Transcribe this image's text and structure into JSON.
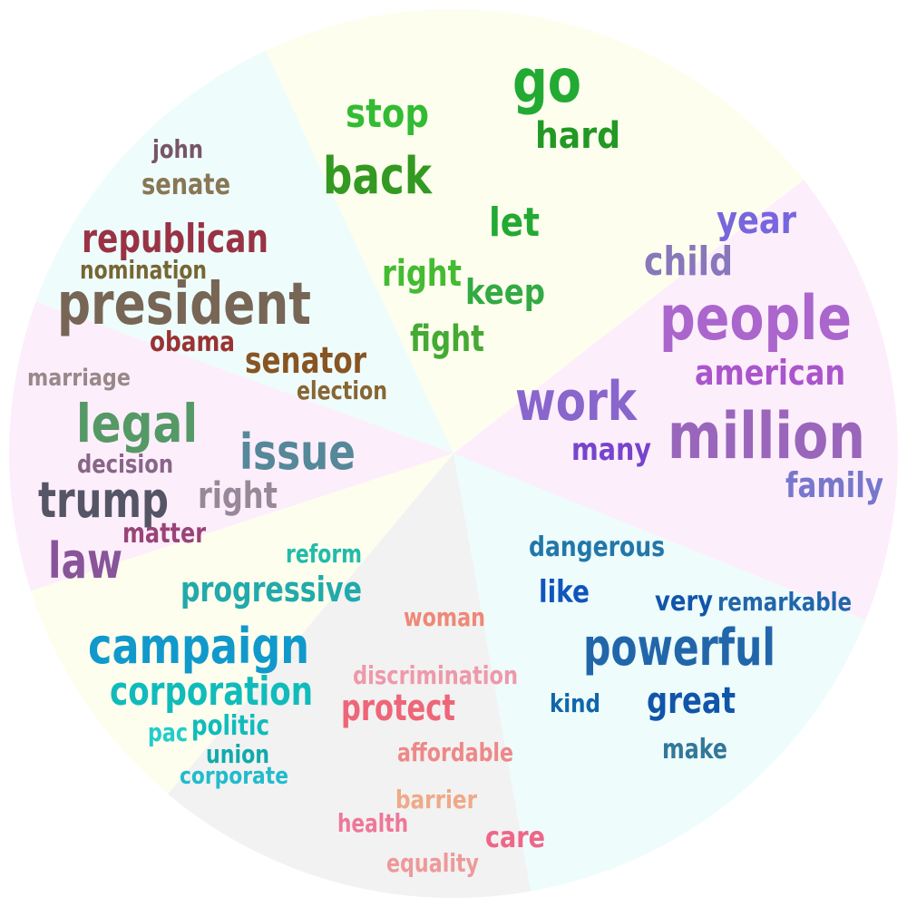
{
  "sectors": [
    {
      "id": "action",
      "bg": "#fefeee",
      "words": [
        {
          "text": "go",
          "color": "#22aa33"
        },
        {
          "text": "stop",
          "color": "#33bb33"
        },
        {
          "text": "hard",
          "color": "#229922"
        },
        {
          "text": "back",
          "color": "#339922"
        },
        {
          "text": "let",
          "color": "#22aa33"
        },
        {
          "text": "right",
          "color": "#44bb33"
        },
        {
          "text": "keep",
          "color": "#33aa44"
        },
        {
          "text": "fight",
          "color": "#44aa33"
        }
      ]
    },
    {
      "id": "people",
      "bg": "#fdeefc",
      "words": [
        {
          "text": "year",
          "color": "#7766dd"
        },
        {
          "text": "child",
          "color": "#8877bb"
        },
        {
          "text": "people",
          "color": "#aa66cc"
        },
        {
          "text": "american",
          "color": "#aa55cc"
        },
        {
          "text": "work",
          "color": "#8866cc"
        },
        {
          "text": "million",
          "color": "#9966bb"
        },
        {
          "text": "many",
          "color": "#7744cc"
        },
        {
          "text": "family",
          "color": "#7777cc"
        }
      ]
    },
    {
      "id": "qualities",
      "bg": "#eefcfc",
      "words": [
        {
          "text": "dangerous",
          "color": "#2277aa"
        },
        {
          "text": "like",
          "color": "#1155bb"
        },
        {
          "text": "very",
          "color": "#1155aa"
        },
        {
          "text": "remarkable",
          "color": "#2266aa"
        },
        {
          "text": "powerful",
          "color": "#2266aa"
        },
        {
          "text": "kind",
          "color": "#1166aa"
        },
        {
          "text": "great",
          "color": "#1155aa"
        },
        {
          "text": "make",
          "color": "#337799"
        }
      ]
    },
    {
      "id": "equality",
      "bg": "#f2f2f2",
      "words": [
        {
          "text": "woman",
          "color": "#ee8877"
        },
        {
          "text": "discrimination",
          "color": "#ee99aa"
        },
        {
          "text": "protect",
          "color": "#ee6677"
        },
        {
          "text": "affordable",
          "color": "#ee8888"
        },
        {
          "text": "barrier",
          "color": "#eeaa88"
        },
        {
          "text": "health",
          "color": "#ee7799"
        },
        {
          "text": "care",
          "color": "#ee6688"
        },
        {
          "text": "equality",
          "color": "#ee9999"
        }
      ]
    },
    {
      "id": "campaign",
      "bg": "#fefeee",
      "words": [
        {
          "text": "reform",
          "color": "#22bbaa"
        },
        {
          "text": "progressive",
          "color": "#22aaaa"
        },
        {
          "text": "campaign",
          "color": "#1199cc"
        },
        {
          "text": "corporation",
          "color": "#11bbbb"
        },
        {
          "text": "pac",
          "color": "#22cccc"
        },
        {
          "text": "politic",
          "color": "#11bbbb"
        },
        {
          "text": "union",
          "color": "#11aaaa"
        },
        {
          "text": "corporate",
          "color": "#22bbcc"
        }
      ]
    },
    {
      "id": "legal",
      "bg": "#fdeefc",
      "words": [
        {
          "text": "marriage",
          "color": "#998888"
        },
        {
          "text": "legal",
          "color": "#559966"
        },
        {
          "text": "issue",
          "color": "#558899"
        },
        {
          "text": "decision",
          "color": "#886688"
        },
        {
          "text": "trump",
          "color": "#555566"
        },
        {
          "text": "right",
          "color": "#998899"
        },
        {
          "text": "matter",
          "color": "#994477"
        },
        {
          "text": "law",
          "color": "#885599"
        }
      ]
    },
    {
      "id": "politics",
      "bg": "#eefcfc",
      "words": [
        {
          "text": "john",
          "color": "#775566"
        },
        {
          "text": "senate",
          "color": "#887755"
        },
        {
          "text": "republican",
          "color": "#993344"
        },
        {
          "text": "nomination",
          "color": "#776633"
        },
        {
          "text": "president",
          "color": "#776655"
        },
        {
          "text": "obama",
          "color": "#993333"
        },
        {
          "text": "senator",
          "color": "#885522"
        },
        {
          "text": "election",
          "color": "#886633"
        }
      ]
    }
  ]
}
